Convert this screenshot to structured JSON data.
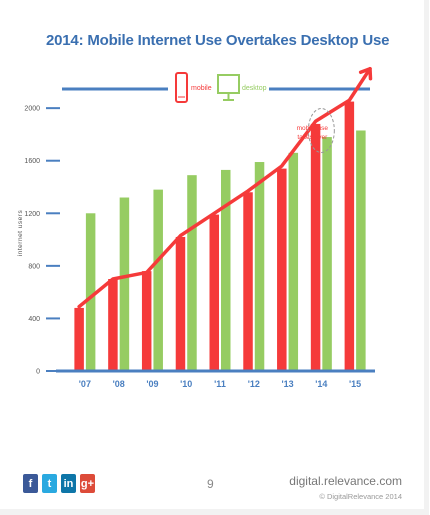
{
  "page": {
    "title": "2014: Mobile Internet Use Overtakes Desktop Use",
    "page_number": "9",
    "site": "digital.relevance.com",
    "copyright": "© DigitalRelevance 2014"
  },
  "social": [
    {
      "name": "facebook",
      "glyph": "f",
      "color": "#3b5998"
    },
    {
      "name": "twitter",
      "glyph": "t",
      "color": "#2aa9e0"
    },
    {
      "name": "linkedin",
      "glyph": "in",
      "color": "#0e76a8"
    },
    {
      "name": "google-plus",
      "glyph": "g+",
      "color": "#dd4b39"
    }
  ],
  "chart_data": {
    "type": "bar",
    "title": "2014: Mobile Internet Use Overtakes Desktop Use",
    "ylabel": "internet users",
    "xlabel": "",
    "categories": [
      "'07",
      "'08",
      "'09",
      "'10",
      "'11",
      "'12",
      "'13",
      "'14",
      "'15"
    ],
    "series": [
      {
        "name": "mobile",
        "color": "#f53a3a",
        "values": [
          480,
          700,
          760,
          1020,
          1190,
          1360,
          1540,
          1880,
          2050
        ]
      },
      {
        "name": "desktop",
        "color": "#96cc62",
        "values": [
          1200,
          1320,
          1380,
          1490,
          1530,
          1590,
          1660,
          1780,
          1830
        ]
      }
    ],
    "trend_line": {
      "series": "mobile",
      "color": "#f53a3a",
      "values": [
        490,
        700,
        750,
        1030,
        1200,
        1370,
        1560,
        1900,
        2060
      ],
      "arrow_end": 2300
    },
    "annotation": {
      "text": [
        "mobile use",
        "takes over"
      ],
      "category": "'14"
    },
    "yticks": [
      0,
      400,
      800,
      1200,
      1600,
      2000
    ],
    "ylim": [
      0,
      2100
    ],
    "legend_placement": "top-center",
    "grid": false,
    "accent_line_color": "#4a7fc0"
  }
}
